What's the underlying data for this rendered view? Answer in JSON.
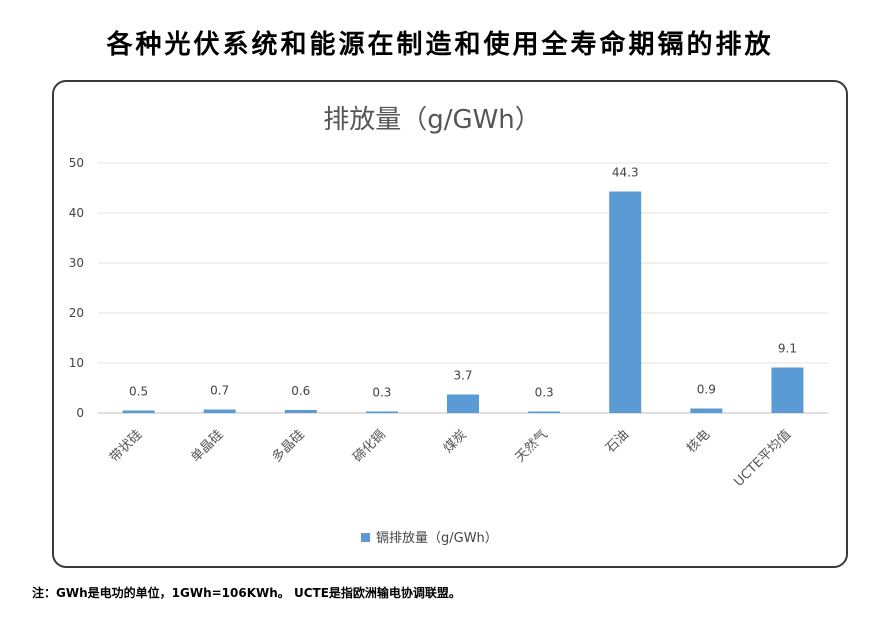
{
  "page_title": "各种光伏系统和能源在制造和使用全寿命期镉的排放",
  "footnote": "注：GWh是电功的单位，1GWh=106KWh。 UCTE是指欧洲输电协调联盟。",
  "chart_data": {
    "type": "bar",
    "title": "排放量（g/GWh）",
    "categories": [
      "带状硅",
      "单晶硅",
      "多晶硅",
      "碲化镉",
      "煤炭",
      "天然气",
      "石油",
      "核电",
      "UCTE平均值"
    ],
    "series": [
      {
        "name": "镉排放量（g/GWh）",
        "values": [
          0.5,
          0.7,
          0.6,
          0.3,
          3.7,
          0.3,
          44.3,
          0.9,
          9.1
        ]
      }
    ],
    "data_labels": [
      "0.5",
      "0.7",
      "0.6",
      "0.3",
      "3.7",
      "0.3",
      "44.3",
      "0.9",
      "9.1"
    ],
    "ylim": [
      0,
      50
    ],
    "yticks": [
      0,
      10,
      20,
      30,
      40,
      50
    ],
    "grid": true,
    "legend_position": "bottom-center",
    "bar_color": "#5b9bd5",
    "xlabel": "",
    "ylabel": ""
  }
}
